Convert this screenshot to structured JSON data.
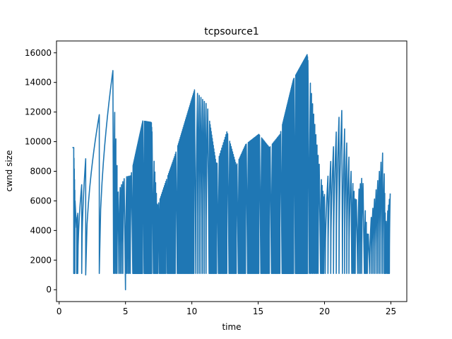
{
  "chart_data": {
    "type": "line",
    "title": "tcpsource1",
    "xlabel": "time",
    "ylabel": "cwnd size",
    "xlim": [
      -0.2,
      26.2
    ],
    "ylim": [
      -800,
      16800
    ],
    "x_ticks": [
      0,
      5,
      10,
      15,
      20,
      25
    ],
    "y_ticks": [
      0,
      2000,
      4000,
      6000,
      8000,
      10000,
      12000,
      14000,
      16000
    ],
    "grid": false,
    "legend": "none",
    "colors": {
      "line": "#1f77b4"
    },
    "series": [
      {
        "growth_epochs": [
          [
            1.0,
            1.1,
            9600,
            0
          ],
          [
            1.1,
            1.2,
            1100,
            4
          ],
          [
            1.3,
            1.4,
            4200,
            4
          ],
          [
            1.4,
            2.0,
            1100,
            1
          ],
          [
            2.0,
            4.05,
            1000,
            1
          ],
          [
            4.1,
            4.45,
            1100,
            3
          ],
          [
            4.5,
            4.9,
            1100,
            3
          ],
          [
            5.0,
            5.45,
            0,
            4
          ],
          [
            5.55,
            6.3,
            1100,
            36
          ],
          [
            6.4,
            7.0,
            1100,
            24
          ],
          [
            7.1,
            7.5,
            1100,
            6
          ],
          [
            7.55,
            8.1,
            1100,
            9
          ],
          [
            8.15,
            8.8,
            1100,
            12
          ],
          [
            8.9,
            10.2,
            1100,
            28
          ],
          [
            10.3,
            11.2,
            1100,
            6
          ],
          [
            11.3,
            11.9,
            1100,
            14
          ],
          [
            12.0,
            12.7,
            1100,
            10
          ],
          [
            12.8,
            13.4,
            1100,
            10
          ],
          [
            13.5,
            14.1,
            1100,
            10
          ],
          [
            14.2,
            15.1,
            1100,
            16
          ],
          [
            15.2,
            15.9,
            1100,
            10
          ],
          [
            16.0,
            16.7,
            1100,
            10
          ],
          [
            16.8,
            17.7,
            1100,
            28
          ],
          [
            17.8,
            18.75,
            1100,
            30
          ],
          [
            18.85,
            19.6,
            1100,
            8
          ],
          [
            19.7,
            20.0,
            1100,
            4
          ],
          [
            20.05,
            21.3,
            1100,
            5
          ],
          [
            21.35,
            22.0,
            1100,
            3
          ],
          [
            22.05,
            22.4,
            1100,
            3
          ],
          [
            22.5,
            22.9,
            1100,
            3
          ],
          [
            23.0,
            23.3,
            1100,
            3
          ],
          [
            23.4,
            24.5,
            1100,
            8
          ],
          [
            24.5,
            24.65,
            1100,
            3
          ],
          [
            24.7,
            24.95,
            1100,
            3
          ]
        ],
        "peaks": [
          [
            1.1,
            9600
          ],
          [
            1.25,
            4200
          ],
          [
            1.95,
            8700
          ],
          [
            4.05,
            14800
          ],
          [
            4.45,
            6600
          ],
          [
            4.95,
            7600
          ],
          [
            5.4,
            7700
          ],
          [
            6.3,
            11400
          ],
          [
            6.95,
            11300
          ],
          [
            7.4,
            5600
          ],
          [
            8.0,
            7200
          ],
          [
            8.7,
            9000
          ],
          [
            10.2,
            13500
          ],
          [
            11.15,
            12500
          ],
          [
            11.85,
            8400
          ],
          [
            12.65,
            10700
          ],
          [
            13.35,
            8400
          ],
          [
            14.05,
            9800
          ],
          [
            15.05,
            10500
          ],
          [
            15.85,
            9600
          ],
          [
            16.65,
            10500
          ],
          [
            17.65,
            14200
          ],
          [
            18.7,
            15900
          ],
          [
            19.55,
            8800
          ],
          [
            19.95,
            6200
          ],
          [
            21.25,
            12400
          ],
          [
            21.95,
            8300
          ],
          [
            22.35,
            5900
          ],
          [
            22.85,
            7700
          ],
          [
            23.25,
            3500
          ],
          [
            24.45,
            9600
          ],
          [
            24.6,
            4300
          ],
          [
            24.95,
            6500
          ]
        ]
      }
    ]
  }
}
